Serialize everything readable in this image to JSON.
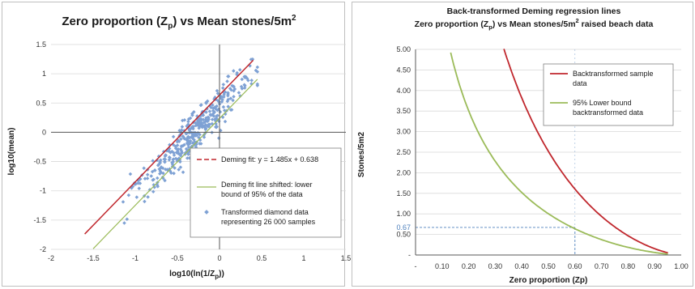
{
  "chart_data": [
    {
      "type": "scatter",
      "title_main": "Zero proportion (Z",
      "title_sub": "p",
      "title_rest": ") vs Mean stones/5m",
      "title_sup": "2",
      "xlabel_main": "log10(ln(1/Z",
      "xlabel_sub": "p",
      "xlabel_rest": "))",
      "ylabel": "log10(mean)",
      "xlim": [
        -2,
        1.5
      ],
      "ylim": [
        -2,
        1.5
      ],
      "xticks": [
        "-2",
        "-1.5",
        "-1",
        "-0.5",
        "0",
        "0.5",
        "1",
        "1.5"
      ],
      "yticks": [
        "-2",
        "-1.5",
        "-1",
        "-0.5",
        "0",
        "0.5",
        "1",
        "1.5"
      ],
      "grid": "horizontal",
      "legend_position": "bottom-right",
      "legend": [
        "Deming fit: y = 1.485x + 0.638",
        "Deming fit line shifted: lower",
        "bound of 95% of the data",
        "Transformed diamond data",
        "representing 26 000 samples"
      ],
      "colors": {
        "fit": "#c0272d",
        "lower": "#9bbb59",
        "points": "#7ea1d4"
      },
      "series": [
        {
          "kind": "line",
          "slope": 1.485,
          "intercept": 0.638,
          "x": [
            -1.6,
            0.4
          ],
          "y": [
            -1.738,
            1.232
          ]
        },
        {
          "kind": "line",
          "slope": 1.485,
          "intercept": 0.238,
          "x": [
            -1.5,
            0.45
          ],
          "y": [
            -1.99,
            0.906
          ]
        },
        {
          "kind": "points",
          "n": 400,
          "x_range": [
            -1.6,
            0.45
          ],
          "y_center_slope": 1.485,
          "y_center_intercept": 0.638
        }
      ]
    },
    {
      "type": "line",
      "title_line1": "Back-transformed Deming regression lines",
      "title_line2_main": "Zero proportion (Z",
      "title_line2_sub": "p",
      "title_line2_rest": ") vs Mean stones/5m",
      "title_line2_sup": "2",
      "title_line2_tail": " raised beach data",
      "xlabel": "Zero proportion (Zp)",
      "ylabel": "Stones/5m2",
      "xlim": [
        0,
        1
      ],
      "ylim": [
        0,
        5
      ],
      "xticks": [
        "-",
        "0.10",
        "0.20",
        "0.30",
        "0.40",
        "0.50",
        "0.60",
        "0.70",
        "0.80",
        "0.90",
        "1.00"
      ],
      "yticks": [
        "-",
        "0.50",
        "1.00",
        "1.50",
        "2.00",
        "2.50",
        "3.00",
        "3.50",
        "4.00",
        "4.50",
        "5.00"
      ],
      "grid": "horizontal",
      "legend_position": "top-right",
      "legend": [
        "Backtransformed sample",
        "data",
        "95% Lower bound",
        "backtransformed data"
      ],
      "annotation": {
        "label": "0.67",
        "x": 0.6,
        "y": 0.67
      },
      "colors": {
        "sample": "#c0272d",
        "lower": "#9bbb59",
        "annotation": "#4f81bd"
      },
      "series": [
        {
          "name": "Backtransformed sample data",
          "a": 0.638,
          "b": 1.485
        },
        {
          "name": "95% Lower bound backtransformed data",
          "a": 0.238,
          "b": 1.485
        }
      ]
    }
  ]
}
